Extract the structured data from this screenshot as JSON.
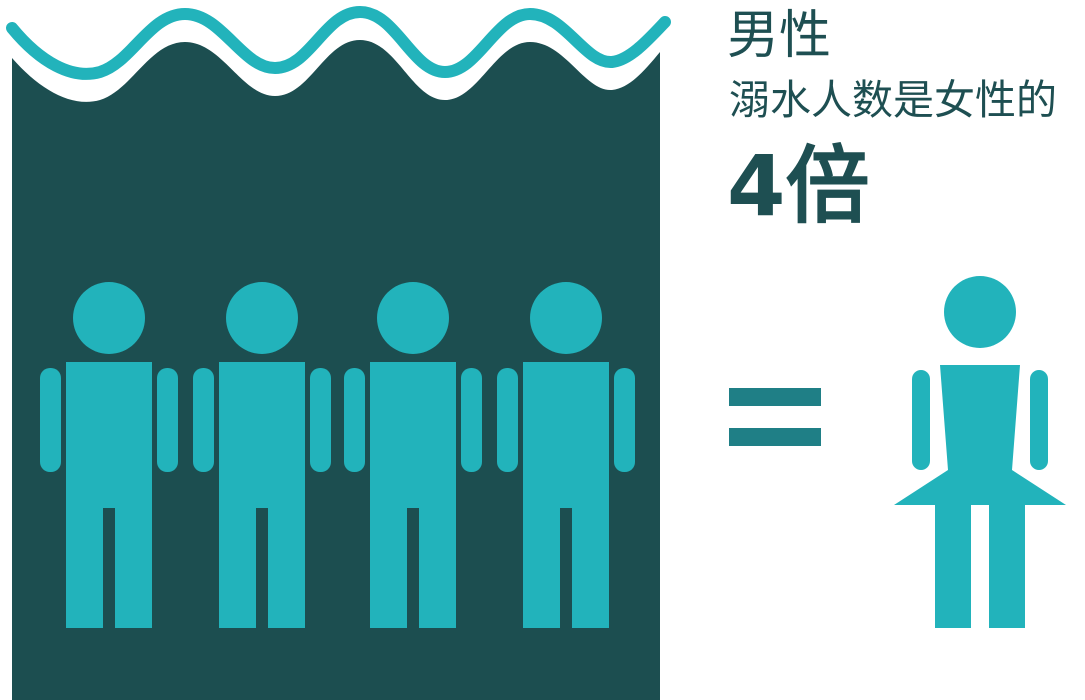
{
  "infographic": {
    "subject": "男性",
    "statement": "溺水人数是女性的",
    "ratio": "4倍"
  },
  "figures": {
    "male_count": 4,
    "female_count": 1
  },
  "colors": {
    "water": "#1c4e50",
    "wave": "#22b3bb",
    "figure": "#22b3bb",
    "text": "#1e4f52",
    "equals": "#1f7f86"
  }
}
